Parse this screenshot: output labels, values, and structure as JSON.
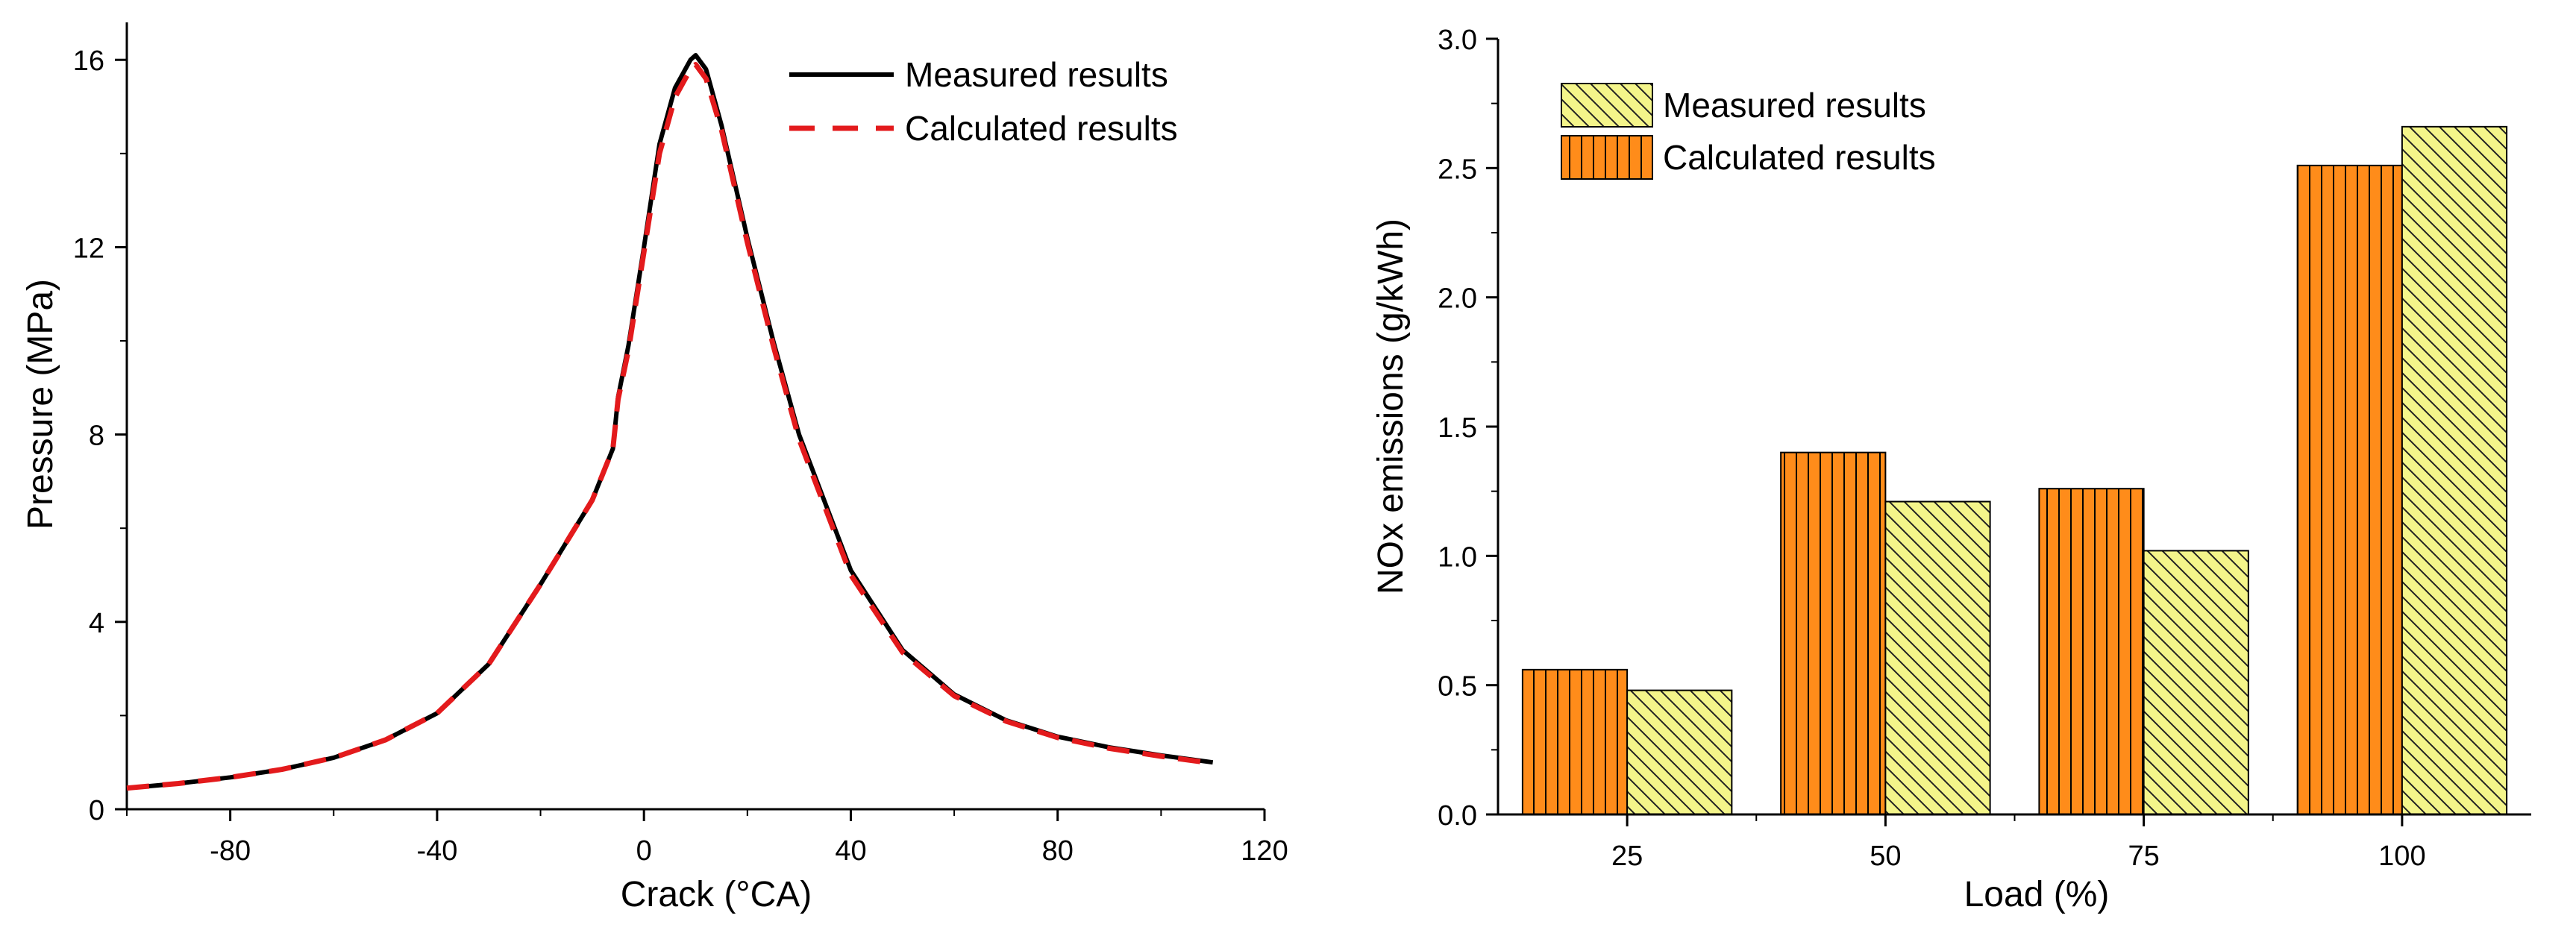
{
  "colors": {
    "measured_line": "#000000",
    "calculated_line": "#e31a1c",
    "orange_bar": "#ff8c1a",
    "yellow_bar": "#f4f58a",
    "axis": "#000000"
  },
  "chart_data": [
    {
      "type": "line",
      "xlabel": "Crack (°CA)",
      "ylabel": "Pressure (MPa)",
      "xlim": [
        -100,
        120
      ],
      "ylim": [
        0,
        16.8
      ],
      "xticks": [
        "-80",
        "-40",
        "0",
        "40",
        "80",
        "120"
      ],
      "yticks": [
        "0",
        "4",
        "8",
        "12",
        "16"
      ],
      "legend": "top-right",
      "series": [
        {
          "name": "Measured results",
          "style": "solid",
          "color": "#000000",
          "x": [
            -100,
            -90,
            -80,
            -70,
            -60,
            -50,
            -40,
            -30,
            -20,
            -10,
            -6,
            -5,
            -3,
            0,
            3,
            6,
            9,
            10,
            12,
            15,
            20,
            25,
            30,
            40,
            50,
            60,
            70,
            80,
            90,
            100,
            110
          ],
          "y": [
            0.45,
            0.55,
            0.68,
            0.85,
            1.1,
            1.48,
            2.05,
            3.1,
            4.8,
            6.6,
            7.7,
            8.8,
            9.9,
            12.0,
            14.2,
            15.4,
            16.0,
            16.1,
            15.8,
            14.6,
            12.2,
            10.0,
            8.0,
            5.1,
            3.4,
            2.45,
            1.9,
            1.55,
            1.32,
            1.15,
            1.0
          ]
        },
        {
          "name": "Calculated results",
          "style": "dashed",
          "color": "#e31a1c",
          "x": [
            -100,
            -90,
            -80,
            -70,
            -60,
            -50,
            -40,
            -30,
            -20,
            -10,
            -6,
            -5,
            -3,
            0,
            3,
            6,
            9,
            10,
            12,
            15,
            20,
            25,
            30,
            40,
            50,
            60,
            70,
            80,
            90,
            100,
            110
          ],
          "y": [
            0.45,
            0.55,
            0.68,
            0.85,
            1.1,
            1.48,
            2.05,
            3.1,
            4.8,
            6.6,
            7.7,
            8.75,
            9.8,
            11.9,
            14.0,
            15.2,
            15.8,
            15.9,
            15.6,
            14.5,
            12.1,
            9.9,
            7.9,
            5.0,
            3.35,
            2.42,
            1.88,
            1.53,
            1.3,
            1.13,
            0.98
          ]
        }
      ]
    },
    {
      "type": "bar",
      "xlabel": "Load (%)",
      "ylabel": "NOx emissions (g/kWh)",
      "ylim": [
        0,
        3.0
      ],
      "yticks": [
        "0.0",
        "0.5",
        "1.0",
        "1.5",
        "2.0",
        "2.5",
        "3.0"
      ],
      "categories": [
        "25",
        "50",
        "75",
        "100"
      ],
      "legend": "top-left",
      "series": [
        {
          "name": "Calculated results",
          "pattern": "vertical-lines",
          "color": "#ff8c1a",
          "values": [
            0.56,
            1.4,
            1.26,
            2.51
          ]
        },
        {
          "name": "Measured results",
          "pattern": "diagonal-lines",
          "color": "#f4f58a",
          "values": [
            0.48,
            1.21,
            1.02,
            2.66
          ]
        }
      ],
      "legend_order": [
        "Measured results",
        "Calculated results"
      ]
    }
  ]
}
